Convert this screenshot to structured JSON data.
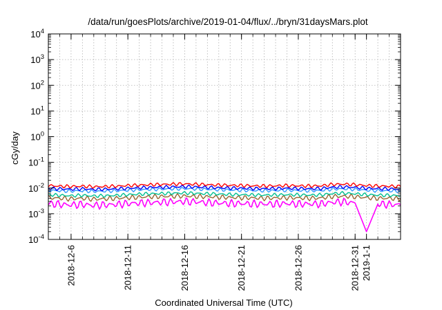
{
  "chart_data": {
    "type": "line",
    "title": "/data/run/goesPlots/archive/2019-01-04/flux/../bryn/31daysMars.plot",
    "xlabel": "Coordinated Universal Time (UTC)",
    "ylabel": "cGy/day",
    "y_scale": "log",
    "ylim": [
      0.0001,
      10000
    ],
    "y_ticks": [
      {
        "value": 0.0001,
        "base": "10",
        "exp": "-4"
      },
      {
        "value": 0.001,
        "base": "10",
        "exp": "-3"
      },
      {
        "value": 0.01,
        "base": "10",
        "exp": "-2"
      },
      {
        "value": 0.1,
        "base": "10",
        "exp": "-1"
      },
      {
        "value": 1,
        "base": "10",
        "exp": "0"
      },
      {
        "value": 10,
        "base": "10",
        "exp": "1"
      },
      {
        "value": 100,
        "base": "10",
        "exp": "2"
      },
      {
        "value": 1000,
        "base": "10",
        "exp": "3"
      },
      {
        "value": 10000,
        "base": "10",
        "exp": "4"
      }
    ],
    "x_scale": "time",
    "xlim": [
      "2018-12-04",
      "2019-01-04"
    ],
    "x_ticks": [
      {
        "value": "2018-12-06",
        "label": "2018-12-6"
      },
      {
        "value": "2018-12-11",
        "label": "2018-12-11"
      },
      {
        "value": "2018-12-16",
        "label": "2018-12-16"
      },
      {
        "value": "2018-12-21",
        "label": "2018-12-21"
      },
      {
        "value": "2018-12-26",
        "label": "2018-12-26"
      },
      {
        "value": "2018-12-31",
        "label": "2018-12-31"
      },
      {
        "value": "2019-01-01",
        "label": "2019-1-1"
      }
    ],
    "grid": true,
    "legend": "none",
    "series": [
      {
        "color": "#ff0000",
        "values": [
          [
            "2018-12-04",
            0.0125
          ],
          [
            "2018-12-05",
            0.0118
          ],
          [
            "2018-12-06",
            0.0115
          ],
          [
            "2018-12-07",
            0.0118
          ],
          [
            "2018-12-08",
            0.0112
          ],
          [
            "2018-12-09",
            0.0115
          ],
          [
            "2018-12-10",
            0.0118
          ],
          [
            "2018-12-11",
            0.0125
          ],
          [
            "2018-12-12",
            0.013
          ],
          [
            "2018-12-13",
            0.0135
          ],
          [
            "2018-12-14",
            0.0138
          ],
          [
            "2018-12-15",
            0.0142
          ],
          [
            "2018-12-16",
            0.0145
          ],
          [
            "2018-12-17",
            0.014
          ],
          [
            "2018-12-18",
            0.0135
          ],
          [
            "2018-12-19",
            0.013
          ],
          [
            "2018-12-20",
            0.0128
          ],
          [
            "2018-12-21",
            0.0125
          ],
          [
            "2018-12-22",
            0.0122
          ],
          [
            "2018-12-23",
            0.012
          ],
          [
            "2018-12-24",
            0.0122
          ],
          [
            "2018-12-25",
            0.0125
          ],
          [
            "2018-12-26",
            0.0122
          ],
          [
            "2018-12-27",
            0.012
          ],
          [
            "2018-12-28",
            0.0122
          ],
          [
            "2018-12-29",
            0.0138
          ],
          [
            "2018-12-30",
            0.0142
          ],
          [
            "2018-12-31",
            0.0135
          ],
          [
            "2019-01-01",
            0.0125
          ],
          [
            "2019-01-02",
            0.012
          ],
          [
            "2019-01-03",
            0.0118
          ],
          [
            "2019-01-04",
            0.0115
          ]
        ]
      },
      {
        "color": "#0000ff",
        "values": [
          [
            "2018-12-04",
            0.0098
          ],
          [
            "2018-12-05",
            0.0093
          ],
          [
            "2018-12-06",
            0.009
          ],
          [
            "2018-12-07",
            0.0093
          ],
          [
            "2018-12-08",
            0.0088
          ],
          [
            "2018-12-09",
            0.009
          ],
          [
            "2018-12-10",
            0.0093
          ],
          [
            "2018-12-11",
            0.0098
          ],
          [
            "2018-12-12",
            0.0102
          ],
          [
            "2018-12-13",
            0.0106
          ],
          [
            "2018-12-14",
            0.0108
          ],
          [
            "2018-12-15",
            0.0111
          ],
          [
            "2018-12-16",
            0.0114
          ],
          [
            "2018-12-17",
            0.011
          ],
          [
            "2018-12-18",
            0.0106
          ],
          [
            "2018-12-19",
            0.0102
          ],
          [
            "2018-12-20",
            0.01
          ],
          [
            "2018-12-21",
            0.0098
          ],
          [
            "2018-12-22",
            0.0096
          ],
          [
            "2018-12-23",
            0.0094
          ],
          [
            "2018-12-24",
            0.0096
          ],
          [
            "2018-12-25",
            0.0098
          ],
          [
            "2018-12-26",
            0.0096
          ],
          [
            "2018-12-27",
            0.0094
          ],
          [
            "2018-12-28",
            0.0096
          ],
          [
            "2018-12-29",
            0.0108
          ],
          [
            "2018-12-30",
            0.0111
          ],
          [
            "2018-12-31",
            0.0106
          ],
          [
            "2019-01-01",
            0.0098
          ],
          [
            "2019-01-02",
            0.0094
          ],
          [
            "2019-01-03",
            0.0093
          ],
          [
            "2019-01-04",
            0.009
          ]
        ]
      },
      {
        "color": "#3399ff",
        "values": [
          [
            "2018-12-04",
            0.0082
          ],
          [
            "2018-12-05",
            0.0078
          ],
          [
            "2018-12-06",
            0.0076
          ],
          [
            "2018-12-07",
            0.0078
          ],
          [
            "2018-12-08",
            0.0074
          ],
          [
            "2018-12-09",
            0.0076
          ],
          [
            "2018-12-10",
            0.0078
          ],
          [
            "2018-12-11",
            0.0082
          ],
          [
            "2018-12-12",
            0.0086
          ],
          [
            "2018-12-13",
            0.0089
          ],
          [
            "2018-12-14",
            0.0091
          ],
          [
            "2018-12-15",
            0.0093
          ],
          [
            "2018-12-16",
            0.0095
          ],
          [
            "2018-12-17",
            0.0092
          ],
          [
            "2018-12-18",
            0.0089
          ],
          [
            "2018-12-19",
            0.0086
          ],
          [
            "2018-12-20",
            0.0084
          ],
          [
            "2018-12-21",
            0.0082
          ],
          [
            "2018-12-22",
            0.008
          ],
          [
            "2018-12-23",
            0.0079
          ],
          [
            "2018-12-24",
            0.008
          ],
          [
            "2018-12-25",
            0.0082
          ],
          [
            "2018-12-26",
            0.008
          ],
          [
            "2018-12-27",
            0.0079
          ],
          [
            "2018-12-28",
            0.008
          ],
          [
            "2018-12-29",
            0.0091
          ],
          [
            "2018-12-30",
            0.0093
          ],
          [
            "2018-12-31",
            0.0089
          ],
          [
            "2019-01-01",
            0.0082
          ],
          [
            "2019-01-02",
            0.0079
          ],
          [
            "2019-01-03",
            0.0078
          ],
          [
            "2019-01-04",
            0.0076
          ]
        ]
      },
      {
        "color": "#00c090",
        "values": [
          [
            "2018-12-04",
            0.0055
          ],
          [
            "2018-12-05",
            0.0052
          ],
          [
            "2018-12-06",
            0.005
          ],
          [
            "2018-12-07",
            0.0052
          ],
          [
            "2018-12-08",
            0.0049
          ],
          [
            "2018-12-09",
            0.005
          ],
          [
            "2018-12-10",
            0.0052
          ],
          [
            "2018-12-11",
            0.0055
          ],
          [
            "2018-12-12",
            0.0058
          ],
          [
            "2018-12-13",
            0.006
          ],
          [
            "2018-12-14",
            0.0061
          ],
          [
            "2018-12-15",
            0.0063
          ],
          [
            "2018-12-16",
            0.0064
          ],
          [
            "2018-12-17",
            0.0062
          ],
          [
            "2018-12-18",
            0.006
          ],
          [
            "2018-12-19",
            0.0058
          ],
          [
            "2018-12-20",
            0.0056
          ],
          [
            "2018-12-21",
            0.0055
          ],
          [
            "2018-12-22",
            0.0054
          ],
          [
            "2018-12-23",
            0.0053
          ],
          [
            "2018-12-24",
            0.0054
          ],
          [
            "2018-12-25",
            0.0055
          ],
          [
            "2018-12-26",
            0.0054
          ],
          [
            "2018-12-27",
            0.0053
          ],
          [
            "2018-12-28",
            0.0054
          ],
          [
            "2018-12-29",
            0.0061
          ],
          [
            "2018-12-30",
            0.0063
          ],
          [
            "2018-12-31",
            0.006
          ],
          [
            "2019-01-01",
            0.0055
          ],
          [
            "2019-01-02",
            0.0053
          ],
          [
            "2019-01-03",
            0.0052
          ],
          [
            "2019-01-04",
            0.005
          ]
        ]
      },
      {
        "color": "#996633",
        "values": [
          [
            "2018-12-04",
            0.0042
          ],
          [
            "2018-12-05",
            0.004
          ],
          [
            "2018-12-06",
            0.0038
          ],
          [
            "2018-12-07",
            0.004
          ],
          [
            "2018-12-08",
            0.0037
          ],
          [
            "2018-12-09",
            0.0038
          ],
          [
            "2018-12-10",
            0.004
          ],
          [
            "2018-12-11",
            0.0042
          ],
          [
            "2018-12-12",
            0.0044
          ],
          [
            "2018-12-13",
            0.0046
          ],
          [
            "2018-12-14",
            0.0047
          ],
          [
            "2018-12-15",
            0.0048
          ],
          [
            "2018-12-16",
            0.0049
          ],
          [
            "2018-12-17",
            0.0047
          ],
          [
            "2018-12-18",
            0.0046
          ],
          [
            "2018-12-19",
            0.0044
          ],
          [
            "2018-12-20",
            0.0043
          ],
          [
            "2018-12-21",
            0.0042
          ],
          [
            "2018-12-22",
            0.0041
          ],
          [
            "2018-12-23",
            0.004
          ],
          [
            "2018-12-24",
            0.0041
          ],
          [
            "2018-12-25",
            0.0042
          ],
          [
            "2018-12-26",
            0.0041
          ],
          [
            "2018-12-27",
            0.004
          ],
          [
            "2018-12-28",
            0.0041
          ],
          [
            "2018-12-29",
            0.0047
          ],
          [
            "2018-12-30",
            0.0048
          ],
          [
            "2018-12-31",
            0.0046
          ],
          [
            "2019-01-01",
            0.0042
          ],
          [
            "2019-01-02",
            0.004
          ],
          [
            "2019-01-03",
            0.004
          ],
          [
            "2019-01-04",
            0.0038
          ]
        ]
      },
      {
        "color": "#ff00ff",
        "values": [
          [
            "2018-12-04",
            0.0025
          ],
          [
            "2018-12-05",
            0.0023
          ],
          [
            "2018-12-06",
            0.0022
          ],
          [
            "2018-12-07",
            0.0023
          ],
          [
            "2018-12-08",
            0.0021
          ],
          [
            "2018-12-09",
            0.0022
          ],
          [
            "2018-12-10",
            0.0023
          ],
          [
            "2018-12-11",
            0.0025
          ],
          [
            "2018-12-12",
            0.0026
          ],
          [
            "2018-12-13",
            0.0027
          ],
          [
            "2018-12-14",
            0.0028
          ],
          [
            "2018-12-15",
            0.0029
          ],
          [
            "2018-12-16",
            0.003
          ],
          [
            "2018-12-17",
            0.0029
          ],
          [
            "2018-12-18",
            0.0027
          ],
          [
            "2018-12-19",
            0.0026
          ],
          [
            "2018-12-20",
            0.0025
          ],
          [
            "2018-12-21",
            0.0025
          ],
          [
            "2018-12-22",
            0.0024
          ],
          [
            "2018-12-23",
            0.0024
          ],
          [
            "2018-12-24",
            0.0024
          ],
          [
            "2018-12-25",
            0.0025
          ],
          [
            "2018-12-26",
            0.0024
          ],
          [
            "2018-12-27",
            0.0024
          ],
          [
            "2018-12-28",
            0.0024
          ],
          [
            "2018-12-29",
            0.0028
          ],
          [
            "2018-12-30",
            0.0029
          ],
          [
            "2018-12-31",
            0.0026
          ],
          [
            "2019-01-01",
            0.0002
          ],
          [
            "2019-01-02",
            0.0024
          ],
          [
            "2019-01-03",
            0.0023
          ],
          [
            "2019-01-04",
            0.0022
          ]
        ]
      }
    ]
  }
}
